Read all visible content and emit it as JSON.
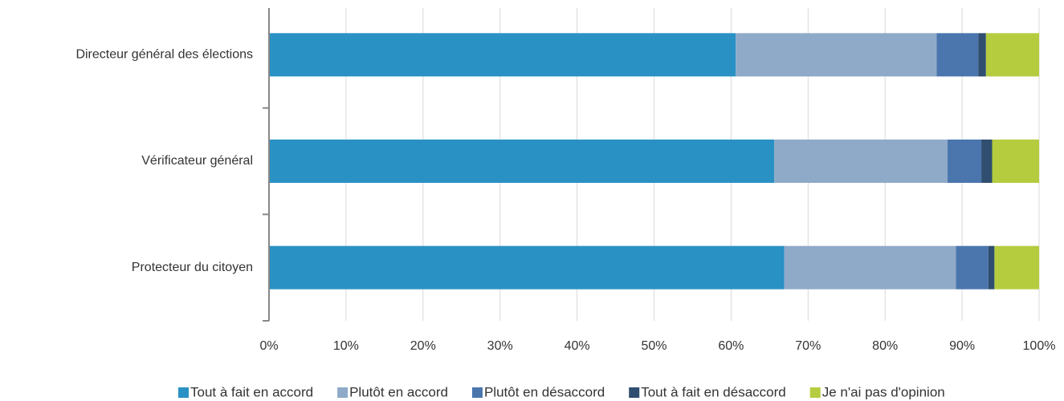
{
  "chart_data": {
    "type": "stacked-bar-horizontal",
    "categories": [
      "Directeur général des élections",
      "Vérificateur général",
      "Protecteur du citoyen"
    ],
    "series": [
      {
        "name": "Tout à fait en accord",
        "color": "#2a91c4",
        "values": [
          60.6,
          65.6,
          66.9
        ]
      },
      {
        "name": "Plutôt en accord",
        "color": "#8faac8",
        "values": [
          26.1,
          22.5,
          22.3
        ]
      },
      {
        "name": "Plutôt en désaccord",
        "color": "#4a76ad",
        "values": [
          5.4,
          4.4,
          4.2
        ]
      },
      {
        "name": "Tout à fait en désaccord",
        "color": "#2f4e70",
        "values": [
          1.0,
          1.4,
          0.8
        ]
      },
      {
        "name": "Je n'ai pas d'opinion",
        "color": "#b5cc3f",
        "values": [
          6.9,
          6.1,
          5.8
        ]
      }
    ],
    "xlim": [
      0,
      100
    ],
    "xticks": [
      {
        "value": 0,
        "label": "0%"
      },
      {
        "value": 10,
        "label": "10%"
      },
      {
        "value": 20,
        "label": "20%"
      },
      {
        "value": 30,
        "label": "30%"
      },
      {
        "value": 40,
        "label": "40%"
      },
      {
        "value": 50,
        "label": "50%"
      },
      {
        "value": 60,
        "label": "60%"
      },
      {
        "value": 70,
        "label": "70%"
      },
      {
        "value": 80,
        "label": "80%"
      },
      {
        "value": 90,
        "label": "90%"
      },
      {
        "value": 100,
        "label": "100%"
      }
    ],
    "grid": true,
    "legend": "bottom"
  }
}
